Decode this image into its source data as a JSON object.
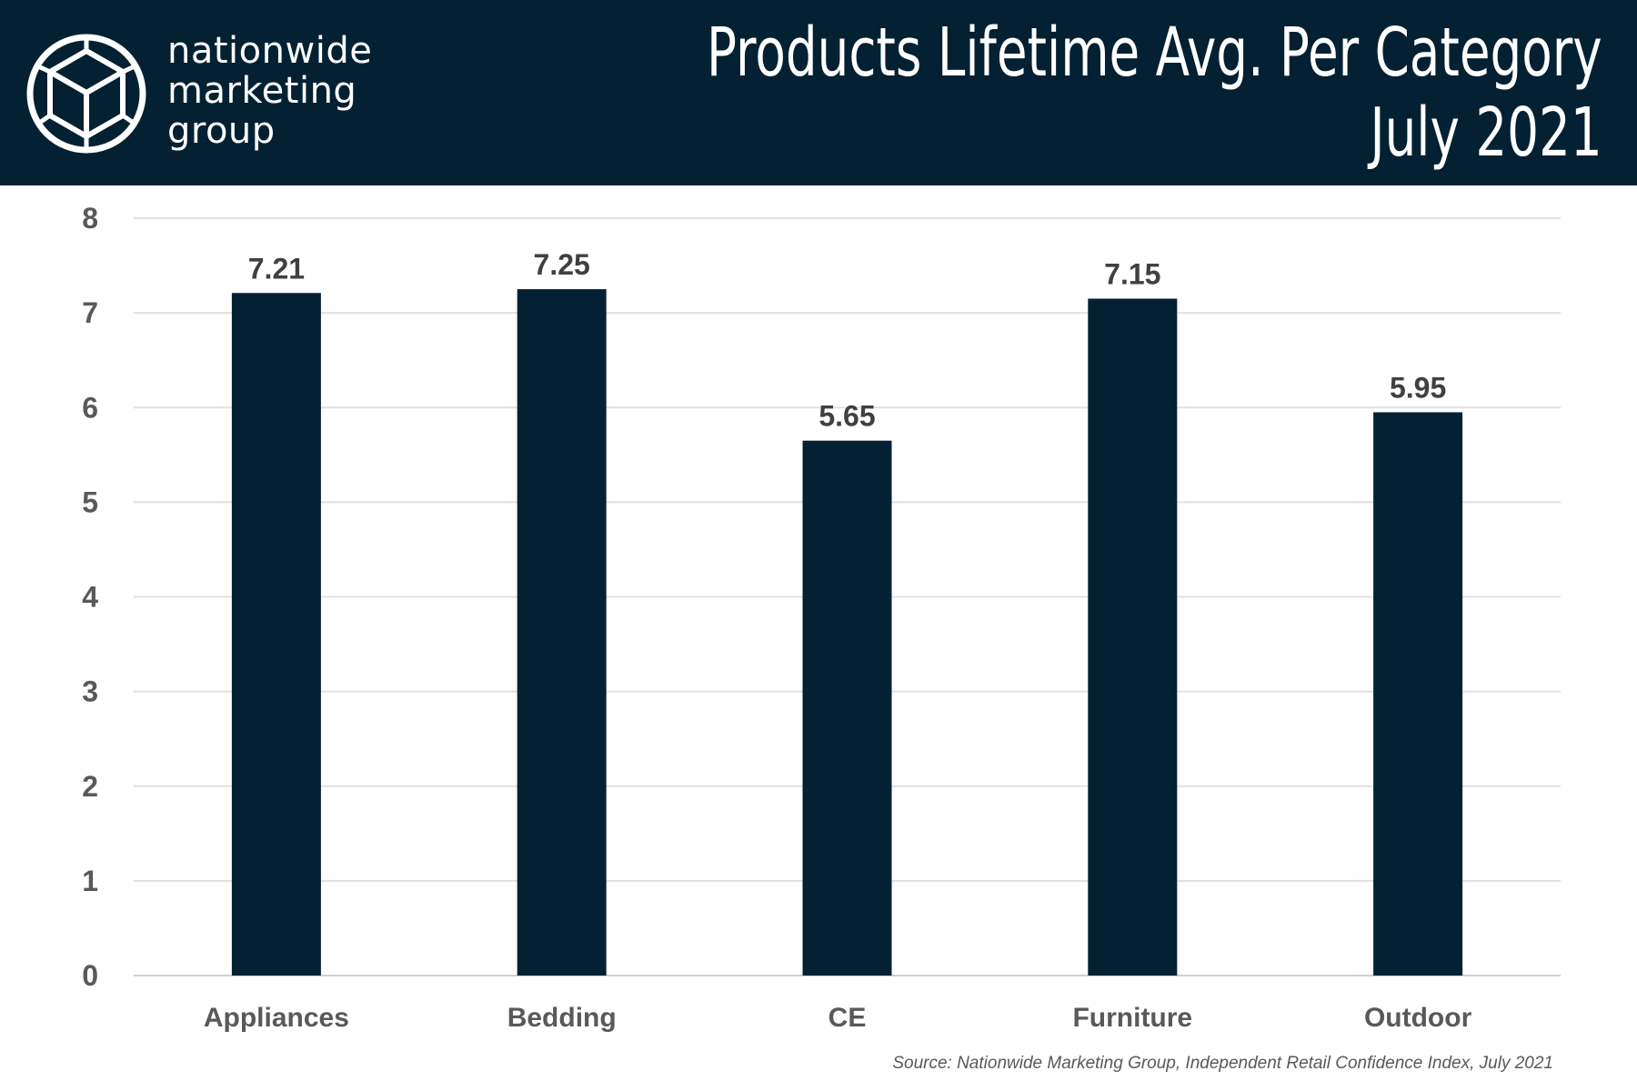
{
  "header": {
    "logo_lines": [
      "nationwide",
      "marketing",
      "group"
    ],
    "title_lines": [
      "Products Lifetime Avg. Per Category",
      "July 2021"
    ],
    "background_color": "#032133"
  },
  "chart_data": {
    "type": "bar",
    "title": "Products Lifetime Avg. Per Category July 2021",
    "categories": [
      "Appliances",
      "Bedding",
      "CE",
      "Furniture",
      "Outdoor"
    ],
    "values": [
      7.21,
      7.25,
      5.65,
      7.15,
      5.95
    ],
    "data_labels": [
      "7.21",
      "7.25",
      "5.65",
      "7.15",
      "5.95"
    ],
    "ylim": [
      0,
      8
    ],
    "yticks": [
      0,
      1,
      2,
      3,
      4,
      5,
      6,
      7,
      8
    ],
    "xlabel": "",
    "ylabel": "",
    "grid": true,
    "legend": "none",
    "bar_color": "#032133"
  },
  "footer": {
    "source": "Source: Nationwide Marketing Group, Independent Retail Confidence Index, July 2021"
  }
}
